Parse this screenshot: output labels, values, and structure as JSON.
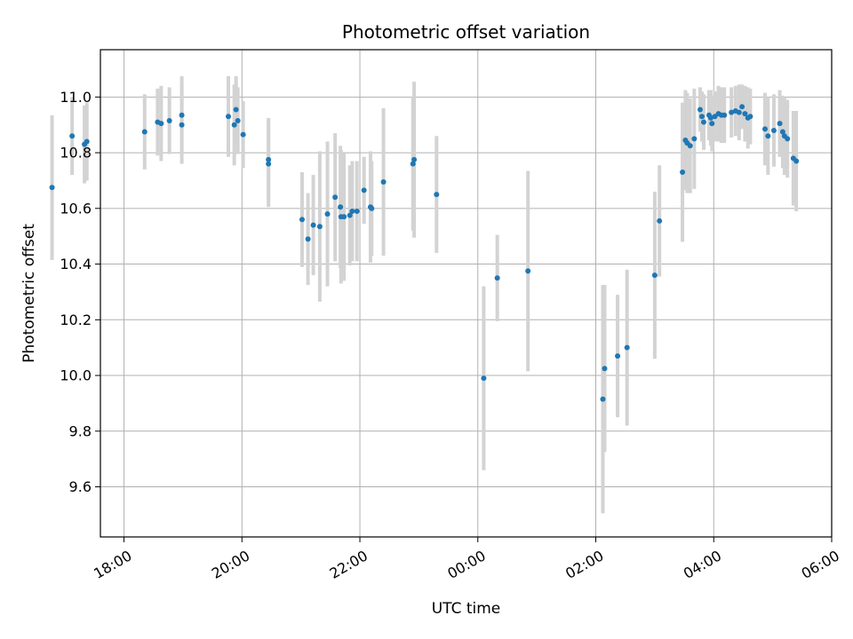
{
  "chart_data": {
    "type": "scatter",
    "title": "Photometric offset variation",
    "xlabel": "UTC time",
    "ylabel": "Photometric offset",
    "x_unit": "hours since 00:00 UTC",
    "xlim": [
      -6.4,
      6.0
    ],
    "ylim": [
      9.42,
      11.17
    ],
    "x_ticks": [
      {
        "value": -6,
        "label": "18:00"
      },
      {
        "value": -4,
        "label": "20:00"
      },
      {
        "value": -2,
        "label": "22:00"
      },
      {
        "value": 0,
        "label": "00:00"
      },
      {
        "value": 2,
        "label": "02:00"
      },
      {
        "value": 4,
        "label": "04:00"
      },
      {
        "value": 6,
        "label": "06:00"
      }
    ],
    "y_ticks": [
      9.6,
      9.8,
      10.0,
      10.2,
      10.4,
      10.6,
      10.8,
      11.0
    ],
    "grid": true,
    "colors": {
      "point": "#1f77b4",
      "errorbar": "#d3d3d3",
      "grid": "#b0b0b0"
    },
    "series": [
      {
        "name": "offset",
        "points": [
          {
            "x": -7.22,
            "y": 10.675,
            "err": 0.26
          },
          {
            "x": -6.88,
            "y": 10.86,
            "err": 0.14
          },
          {
            "x": -6.67,
            "y": 10.83,
            "err": 0.14
          },
          {
            "x": -6.63,
            "y": 10.84,
            "err": 0.14
          },
          {
            "x": -5.65,
            "y": 10.875,
            "err": 0.135
          },
          {
            "x": -5.43,
            "y": 10.91,
            "err": 0.12
          },
          {
            "x": -5.37,
            "y": 10.905,
            "err": 0.135
          },
          {
            "x": -5.23,
            "y": 10.915,
            "err": 0.12
          },
          {
            "x": -5.02,
            "y": 10.935,
            "err": 0.14
          },
          {
            "x": -5.02,
            "y": 10.9,
            "err": 0.14
          },
          {
            "x": -4.23,
            "y": 10.93,
            "err": 0.145
          },
          {
            "x": -4.13,
            "y": 10.9,
            "err": 0.145
          },
          {
            "x": -4.1,
            "y": 10.955,
            "err": 0.12
          },
          {
            "x": -4.07,
            "y": 10.915,
            "err": 0.12
          },
          {
            "x": -3.98,
            "y": 10.865,
            "err": 0.12
          },
          {
            "x": -3.55,
            "y": 10.775,
            "err": 0.15
          },
          {
            "x": -3.55,
            "y": 10.76,
            "err": 0.155
          },
          {
            "x": -2.98,
            "y": 10.56,
            "err": 0.17
          },
          {
            "x": -2.88,
            "y": 10.49,
            "err": 0.165
          },
          {
            "x": -2.79,
            "y": 10.54,
            "err": 0.18
          },
          {
            "x": -2.68,
            "y": 10.535,
            "err": 0.27
          },
          {
            "x": -2.55,
            "y": 10.58,
            "err": 0.26
          },
          {
            "x": -2.42,
            "y": 10.64,
            "err": 0.23
          },
          {
            "x": -2.33,
            "y": 10.605,
            "err": 0.22
          },
          {
            "x": -2.32,
            "y": 10.57,
            "err": 0.24
          },
          {
            "x": -2.27,
            "y": 10.57,
            "err": 0.23
          },
          {
            "x": -2.17,
            "y": 10.575,
            "err": 0.18
          },
          {
            "x": -2.13,
            "y": 10.59,
            "err": 0.18
          },
          {
            "x": -2.05,
            "y": 10.59,
            "err": 0.18
          },
          {
            "x": -1.93,
            "y": 10.665,
            "err": 0.12
          },
          {
            "x": -1.82,
            "y": 10.605,
            "err": 0.2
          },
          {
            "x": -1.8,
            "y": 10.6,
            "err": 0.17
          },
          {
            "x": -1.6,
            "y": 10.695,
            "err": 0.265
          },
          {
            "x": -1.1,
            "y": 10.76,
            "err": 0.24
          },
          {
            "x": -1.08,
            "y": 10.775,
            "err": 0.28
          },
          {
            "x": -0.7,
            "y": 10.65,
            "err": 0.21
          },
          {
            "x": 0.1,
            "y": 9.99,
            "err": 0.33
          },
          {
            "x": 0.33,
            "y": 10.35,
            "err": 0.155
          },
          {
            "x": 0.85,
            "y": 10.375,
            "err": 0.36
          },
          {
            "x": 2.12,
            "y": 9.915,
            "err": 0.41
          },
          {
            "x": 2.15,
            "y": 10.025,
            "err": 0.3
          },
          {
            "x": 2.37,
            "y": 10.07,
            "err": 0.22
          },
          {
            "x": 2.53,
            "y": 10.1,
            "err": 0.28
          },
          {
            "x": 3.0,
            "y": 10.36,
            "err": 0.3
          },
          {
            "x": 3.08,
            "y": 10.555,
            "err": 0.2
          },
          {
            "x": 3.47,
            "y": 10.73,
            "err": 0.25
          },
          {
            "x": 3.52,
            "y": 10.845,
            "err": 0.18
          },
          {
            "x": 3.55,
            "y": 10.835,
            "err": 0.18
          },
          {
            "x": 3.6,
            "y": 10.825,
            "err": 0.17
          },
          {
            "x": 3.67,
            "y": 10.85,
            "err": 0.18
          },
          {
            "x": 3.77,
            "y": 10.955,
            "err": 0.08
          },
          {
            "x": 3.8,
            "y": 10.93,
            "err": 0.09
          },
          {
            "x": 3.83,
            "y": 10.91,
            "err": 0.1
          },
          {
            "x": 3.92,
            "y": 10.935,
            "err": 0.09
          },
          {
            "x": 3.95,
            "y": 10.925,
            "err": 0.1
          },
          {
            "x": 3.97,
            "y": 10.905,
            "err": 0.1
          },
          {
            "x": 4.02,
            "y": 10.93,
            "err": 0.09
          },
          {
            "x": 4.08,
            "y": 10.94,
            "err": 0.1
          },
          {
            "x": 4.13,
            "y": 10.935,
            "err": 0.1
          },
          {
            "x": 4.18,
            "y": 10.935,
            "err": 0.1
          },
          {
            "x": 4.3,
            "y": 10.945,
            "err": 0.09
          },
          {
            "x": 4.37,
            "y": 10.95,
            "err": 0.09
          },
          {
            "x": 4.43,
            "y": 10.945,
            "err": 0.1
          },
          {
            "x": 4.48,
            "y": 10.965,
            "err": 0.08
          },
          {
            "x": 4.53,
            "y": 10.94,
            "err": 0.1
          },
          {
            "x": 4.58,
            "y": 10.925,
            "err": 0.11
          },
          {
            "x": 4.62,
            "y": 10.93,
            "err": 0.1
          },
          {
            "x": 4.87,
            "y": 10.885,
            "err": 0.13
          },
          {
            "x": 4.92,
            "y": 10.86,
            "err": 0.14
          },
          {
            "x": 5.02,
            "y": 10.88,
            "err": 0.13
          },
          {
            "x": 5.12,
            "y": 10.905,
            "err": 0.12
          },
          {
            "x": 5.17,
            "y": 10.875,
            "err": 0.13
          },
          {
            "x": 5.2,
            "y": 10.86,
            "err": 0.14
          },
          {
            "x": 5.25,
            "y": 10.85,
            "err": 0.14
          },
          {
            "x": 5.35,
            "y": 10.78,
            "err": 0.17
          },
          {
            "x": 5.4,
            "y": 10.77,
            "err": 0.18
          }
        ]
      }
    ]
  }
}
